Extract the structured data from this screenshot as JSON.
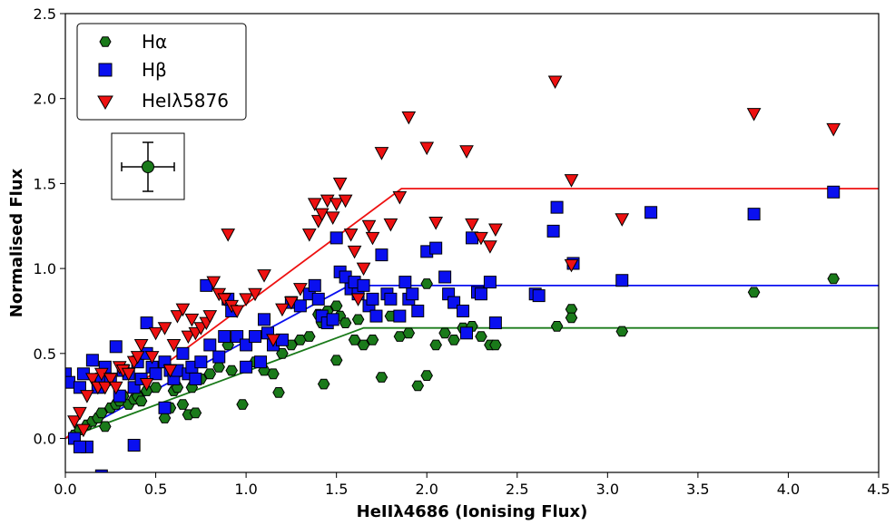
{
  "chart_data": {
    "type": "scatter",
    "xlabel": "HeIIλ4686 (Ionising Flux)",
    "ylabel": "Normalised Flux",
    "xlim": [
      0.0,
      4.5
    ],
    "ylim": [
      -0.2,
      2.5
    ],
    "xticks": [
      "0.0",
      "0.5",
      "1.0",
      "1.5",
      "2.0",
      "2.5",
      "3.0",
      "3.5",
      "4.0",
      "4.5"
    ],
    "yticks": [
      "0.0",
      "0.5",
      "1.0",
      "1.5",
      "2.0",
      "2.5"
    ],
    "grid": false,
    "legend_position": "top-left",
    "legend": [
      "Hα",
      "Hβ",
      "HeIλ5876"
    ],
    "series": [
      {
        "name": "Hα",
        "marker": "hexagon",
        "color": "#1a7a1a",
        "points": [
          [
            0.05,
            0.02
          ],
          [
            0.08,
            0.05
          ],
          [
            0.12,
            0.08
          ],
          [
            0.15,
            0.1
          ],
          [
            0.18,
            0.12
          ],
          [
            0.2,
            0.15
          ],
          [
            0.22,
            0.07
          ],
          [
            0.25,
            0.18
          ],
          [
            0.28,
            0.2
          ],
          [
            0.3,
            0.22
          ],
          [
            0.32,
            0.25
          ],
          [
            0.35,
            0.2
          ],
          [
            0.38,
            0.23
          ],
          [
            0.4,
            0.25
          ],
          [
            0.42,
            0.22
          ],
          [
            0.45,
            0.28
          ],
          [
            0.5,
            0.3
          ],
          [
            0.55,
            0.12
          ],
          [
            0.58,
            0.18
          ],
          [
            0.6,
            0.28
          ],
          [
            0.62,
            0.3
          ],
          [
            0.65,
            0.2
          ],
          [
            0.68,
            0.14
          ],
          [
            0.7,
            0.3
          ],
          [
            0.72,
            0.15
          ],
          [
            0.75,
            0.35
          ],
          [
            0.8,
            0.38
          ],
          [
            0.85,
            0.42
          ],
          [
            0.9,
            0.55
          ],
          [
            0.92,
            0.4
          ],
          [
            0.95,
            0.6
          ],
          [
            0.98,
            0.2
          ],
          [
            1.0,
            0.42
          ],
          [
            1.05,
            0.45
          ],
          [
            1.1,
            0.4
          ],
          [
            1.15,
            0.38
          ],
          [
            1.18,
            0.27
          ],
          [
            1.2,
            0.5
          ],
          [
            1.25,
            0.55
          ],
          [
            1.3,
            0.58
          ],
          [
            1.35,
            0.6
          ],
          [
            1.4,
            0.73
          ],
          [
            1.42,
            0.68
          ],
          [
            1.45,
            0.75
          ],
          [
            1.48,
            0.7
          ],
          [
            1.5,
            0.78
          ],
          [
            1.52,
            0.72
          ],
          [
            1.55,
            0.68
          ],
          [
            1.6,
            0.58
          ],
          [
            1.62,
            0.7
          ],
          [
            1.65,
            0.55
          ],
          [
            1.7,
            0.58
          ],
          [
            1.75,
            0.36
          ],
          [
            1.8,
            0.72
          ],
          [
            1.85,
            0.6
          ],
          [
            1.9,
            0.62
          ],
          [
            1.95,
            0.31
          ],
          [
            2.0,
            0.37
          ],
          [
            2.05,
            0.55
          ],
          [
            2.1,
            0.62
          ],
          [
            2.15,
            0.58
          ],
          [
            2.2,
            0.65
          ],
          [
            2.25,
            0.66
          ],
          [
            2.3,
            0.6
          ],
          [
            2.35,
            0.55
          ],
          [
            2.38,
            0.55
          ],
          [
            2.0,
            0.91
          ],
          [
            1.43,
            0.32
          ],
          [
            1.5,
            0.46
          ],
          [
            2.72,
            0.66
          ],
          [
            2.8,
            0.76
          ],
          [
            2.8,
            0.71
          ],
          [
            3.08,
            0.63
          ],
          [
            3.81,
            0.86
          ],
          [
            4.25,
            0.94
          ]
        ]
      },
      {
        "name": "Hβ",
        "marker": "square",
        "color": "#0a10f0",
        "points": [
          [
            0.0,
            0.38
          ],
          [
            0.02,
            0.33
          ],
          [
            0.05,
            0.0
          ],
          [
            0.08,
            0.3
          ],
          [
            0.1,
            0.38
          ],
          [
            0.12,
            -0.05
          ],
          [
            0.15,
            0.46
          ],
          [
            0.18,
            0.3
          ],
          [
            0.2,
            0.35
          ],
          [
            0.22,
            0.42
          ],
          [
            0.25,
            0.35
          ],
          [
            0.28,
            0.54
          ],
          [
            0.3,
            0.25
          ],
          [
            0.32,
            0.4
          ],
          [
            0.35,
            0.38
          ],
          [
            0.38,
            0.3
          ],
          [
            0.4,
            0.45
          ],
          [
            0.42,
            0.35
          ],
          [
            0.45,
            0.5
          ],
          [
            0.48,
            0.42
          ],
          [
            0.5,
            0.38
          ],
          [
            0.55,
            0.45
          ],
          [
            0.58,
            0.4
          ],
          [
            0.6,
            0.35
          ],
          [
            0.62,
            0.4
          ],
          [
            0.65,
            0.5
          ],
          [
            0.68,
            0.38
          ],
          [
            0.7,
            0.42
          ],
          [
            0.72,
            0.35
          ],
          [
            0.75,
            0.45
          ],
          [
            0.78,
            0.9
          ],
          [
            0.8,
            0.55
          ],
          [
            0.85,
            0.48
          ],
          [
            0.88,
            0.6
          ],
          [
            0.9,
            0.82
          ],
          [
            0.92,
            0.75
          ],
          [
            0.95,
            0.6
          ],
          [
            1.0,
            0.55
          ],
          [
            1.05,
            0.6
          ],
          [
            1.08,
            0.45
          ],
          [
            1.1,
            0.7
          ],
          [
            1.12,
            0.62
          ],
          [
            1.15,
            0.55
          ],
          [
            1.2,
            0.58
          ],
          [
            1.25,
            0.8
          ],
          [
            1.3,
            0.78
          ],
          [
            1.35,
            0.85
          ],
          [
            1.38,
            0.9
          ],
          [
            1.4,
            0.82
          ],
          [
            1.42,
            0.72
          ],
          [
            1.45,
            0.68
          ],
          [
            1.48,
            0.7
          ],
          [
            1.5,
            1.18
          ],
          [
            1.52,
            0.98
          ],
          [
            1.55,
            0.95
          ],
          [
            1.58,
            0.88
          ],
          [
            1.6,
            0.92
          ],
          [
            1.62,
            0.85
          ],
          [
            1.65,
            0.9
          ],
          [
            1.68,
            0.78
          ],
          [
            1.7,
            0.82
          ],
          [
            1.72,
            0.72
          ],
          [
            1.75,
            1.08
          ],
          [
            1.78,
            0.85
          ],
          [
            1.8,
            0.82
          ],
          [
            1.85,
            0.72
          ],
          [
            1.88,
            0.92
          ],
          [
            1.9,
            0.82
          ],
          [
            1.92,
            0.85
          ],
          [
            1.95,
            0.75
          ],
          [
            2.0,
            1.1
          ],
          [
            2.05,
            1.12
          ],
          [
            2.1,
            0.95
          ],
          [
            2.12,
            0.85
          ],
          [
            2.15,
            0.8
          ],
          [
            2.2,
            0.75
          ],
          [
            2.22,
            0.62
          ],
          [
            2.25,
            1.18
          ],
          [
            2.28,
            0.86
          ],
          [
            2.3,
            0.85
          ],
          [
            2.35,
            0.92
          ],
          [
            2.38,
            0.68
          ],
          [
            2.6,
            0.85
          ],
          [
            2.62,
            0.84
          ],
          [
            2.7,
            1.22
          ],
          [
            2.72,
            1.36
          ],
          [
            2.81,
            1.03
          ],
          [
            3.08,
            0.93
          ],
          [
            3.24,
            1.33
          ],
          [
            3.81,
            1.32
          ],
          [
            4.25,
            1.45
          ],
          [
            0.38,
            -0.04
          ],
          [
            0.2,
            -0.22
          ],
          [
            0.08,
            -0.05
          ],
          [
            0.45,
            0.68
          ],
          [
            1.0,
            0.42
          ],
          [
            0.55,
            0.18
          ]
        ]
      },
      {
        "name": "HeIλ5876",
        "marker": "triangle-down",
        "color": "#ee1111",
        "points": [
          [
            0.05,
            0.1
          ],
          [
            0.08,
            0.15
          ],
          [
            0.1,
            0.05
          ],
          [
            0.12,
            0.25
          ],
          [
            0.15,
            0.35
          ],
          [
            0.18,
            0.3
          ],
          [
            0.2,
            0.38
          ],
          [
            0.22,
            0.3
          ],
          [
            0.25,
            0.35
          ],
          [
            0.28,
            0.3
          ],
          [
            0.3,
            0.42
          ],
          [
            0.32,
            0.4
          ],
          [
            0.35,
            0.38
          ],
          [
            0.38,
            0.45
          ],
          [
            0.4,
            0.48
          ],
          [
            0.42,
            0.55
          ],
          [
            0.45,
            0.32
          ],
          [
            0.48,
            0.48
          ],
          [
            0.5,
            0.62
          ],
          [
            0.55,
            0.65
          ],
          [
            0.58,
            0.4
          ],
          [
            0.6,
            0.55
          ],
          [
            0.62,
            0.72
          ],
          [
            0.65,
            0.76
          ],
          [
            0.68,
            0.6
          ],
          [
            0.7,
            0.7
          ],
          [
            0.72,
            0.62
          ],
          [
            0.75,
            0.65
          ],
          [
            0.78,
            0.68
          ],
          [
            0.8,
            0.72
          ],
          [
            0.82,
            0.92
          ],
          [
            0.85,
            0.85
          ],
          [
            0.88,
            0.82
          ],
          [
            0.9,
            1.2
          ],
          [
            0.92,
            0.78
          ],
          [
            0.95,
            0.75
          ],
          [
            1.0,
            0.82
          ],
          [
            1.05,
            0.85
          ],
          [
            1.1,
            0.96
          ],
          [
            1.15,
            0.58
          ],
          [
            1.2,
            0.76
          ],
          [
            1.25,
            0.8
          ],
          [
            1.3,
            0.88
          ],
          [
            1.35,
            1.2
          ],
          [
            1.38,
            1.38
          ],
          [
            1.4,
            1.28
          ],
          [
            1.42,
            1.32
          ],
          [
            1.45,
            1.4
          ],
          [
            1.48,
            1.3
          ],
          [
            1.5,
            1.38
          ],
          [
            1.52,
            1.5
          ],
          [
            1.55,
            1.4
          ],
          [
            1.58,
            1.2
          ],
          [
            1.6,
            1.1
          ],
          [
            1.62,
            0.82
          ],
          [
            1.65,
            1.0
          ],
          [
            1.68,
            1.25
          ],
          [
            1.7,
            1.18
          ],
          [
            1.75,
            1.68
          ],
          [
            1.8,
            1.26
          ],
          [
            1.85,
            1.42
          ],
          [
            1.9,
            1.89
          ],
          [
            2.0,
            1.71
          ],
          [
            2.05,
            1.27
          ],
          [
            2.22,
            1.69
          ],
          [
            2.25,
            1.26
          ],
          [
            2.3,
            1.18
          ],
          [
            2.35,
            1.13
          ],
          [
            2.38,
            1.23
          ],
          [
            2.71,
            2.1
          ],
          [
            2.8,
            1.52
          ],
          [
            2.8,
            1.02
          ],
          [
            3.08,
            1.29
          ],
          [
            3.81,
            1.91
          ],
          [
            4.25,
            1.82
          ]
        ]
      }
    ],
    "fit_lines": [
      {
        "name": "Hα",
        "color": "#1a7a1a",
        "points": [
          [
            0.0,
            0.0
          ],
          [
            1.65,
            0.65
          ],
          [
            4.5,
            0.65
          ]
        ]
      },
      {
        "name": "Hβ",
        "color": "#0a10f0",
        "points": [
          [
            0.0,
            0.0
          ],
          [
            1.57,
            0.9
          ],
          [
            4.5,
            0.9
          ]
        ]
      },
      {
        "name": "HeIλ5876",
        "color": "#ee1111",
        "points": [
          [
            0.0,
            0.0
          ],
          [
            1.86,
            1.47
          ],
          [
            4.5,
            1.47
          ]
        ]
      }
    ],
    "error_bar_inset": {
      "marker": "circle",
      "color": "#1a7a1a"
    }
  }
}
